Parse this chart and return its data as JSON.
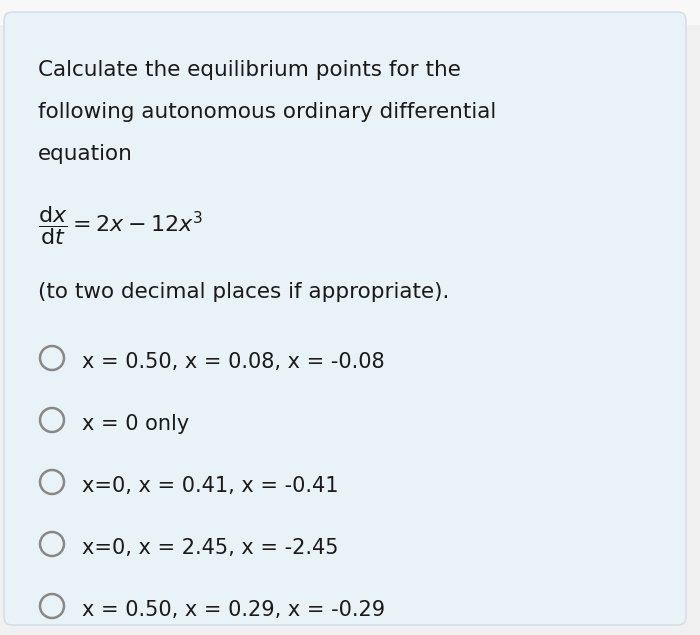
{
  "outer_bg": "#f0f0f0",
  "card_bg": "#e8f2f7",
  "white_strip_color": "#f8f8f8",
  "text_color": "#1a1a1a",
  "title_lines": [
    "Calculate the equilibrium points for the",
    "following autonomous ordinary differential",
    "equation"
  ],
  "equation_text": "$\\dfrac{\\mathrm{d}x}{\\mathrm{d}t} = 2x - 12x^3$",
  "subtitle": "(to two decimal places if appropriate).",
  "options": [
    "x = 0.50, x = 0.08, x = -0.08",
    "x = 0 only",
    "x=0, x = 0.41, x = -0.41",
    "x=0, x = 2.45, x = -2.45",
    "x = 0.50, x = 0.29, x = -0.29"
  ],
  "figsize": [
    7.0,
    6.35
  ],
  "dpi": 100
}
